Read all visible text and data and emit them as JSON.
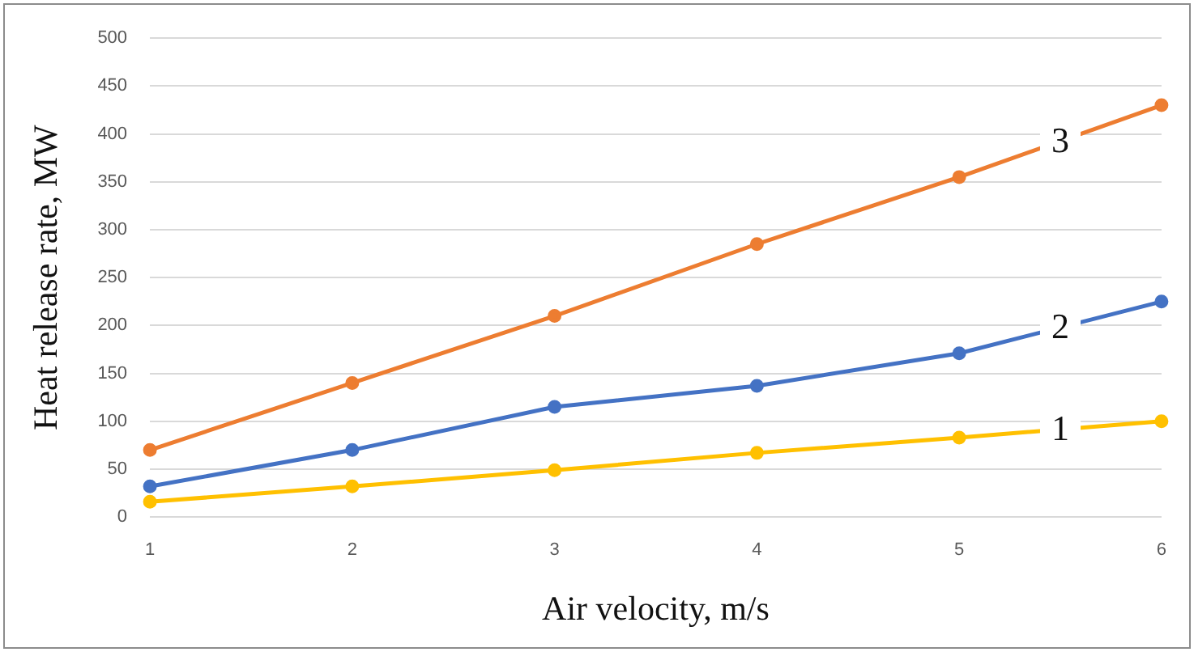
{
  "chart_data": {
    "type": "line",
    "xlabel": "Air velocity, m/s",
    "ylabel": "Heat release rate, MW",
    "categories": [
      "1",
      "2",
      "3",
      "4",
      "5",
      "6"
    ],
    "series": [
      {
        "name": "1",
        "color": "#ffc000",
        "values": [
          16,
          32,
          49,
          67,
          83,
          100
        ]
      },
      {
        "name": "2",
        "color": "#4472c4",
        "values": [
          32,
          70,
          115,
          137,
          171,
          225
        ]
      },
      {
        "name": "3",
        "color": "#ed7d31",
        "values": [
          70,
          140,
          210,
          285,
          355,
          430
        ]
      }
    ],
    "ylim": [
      0,
      500
    ],
    "yticks": [
      0,
      50,
      100,
      150,
      200,
      250,
      300,
      350,
      400,
      450,
      500
    ],
    "grid": "y",
    "legend": false,
    "marker": "circle",
    "line_style": "solid"
  }
}
